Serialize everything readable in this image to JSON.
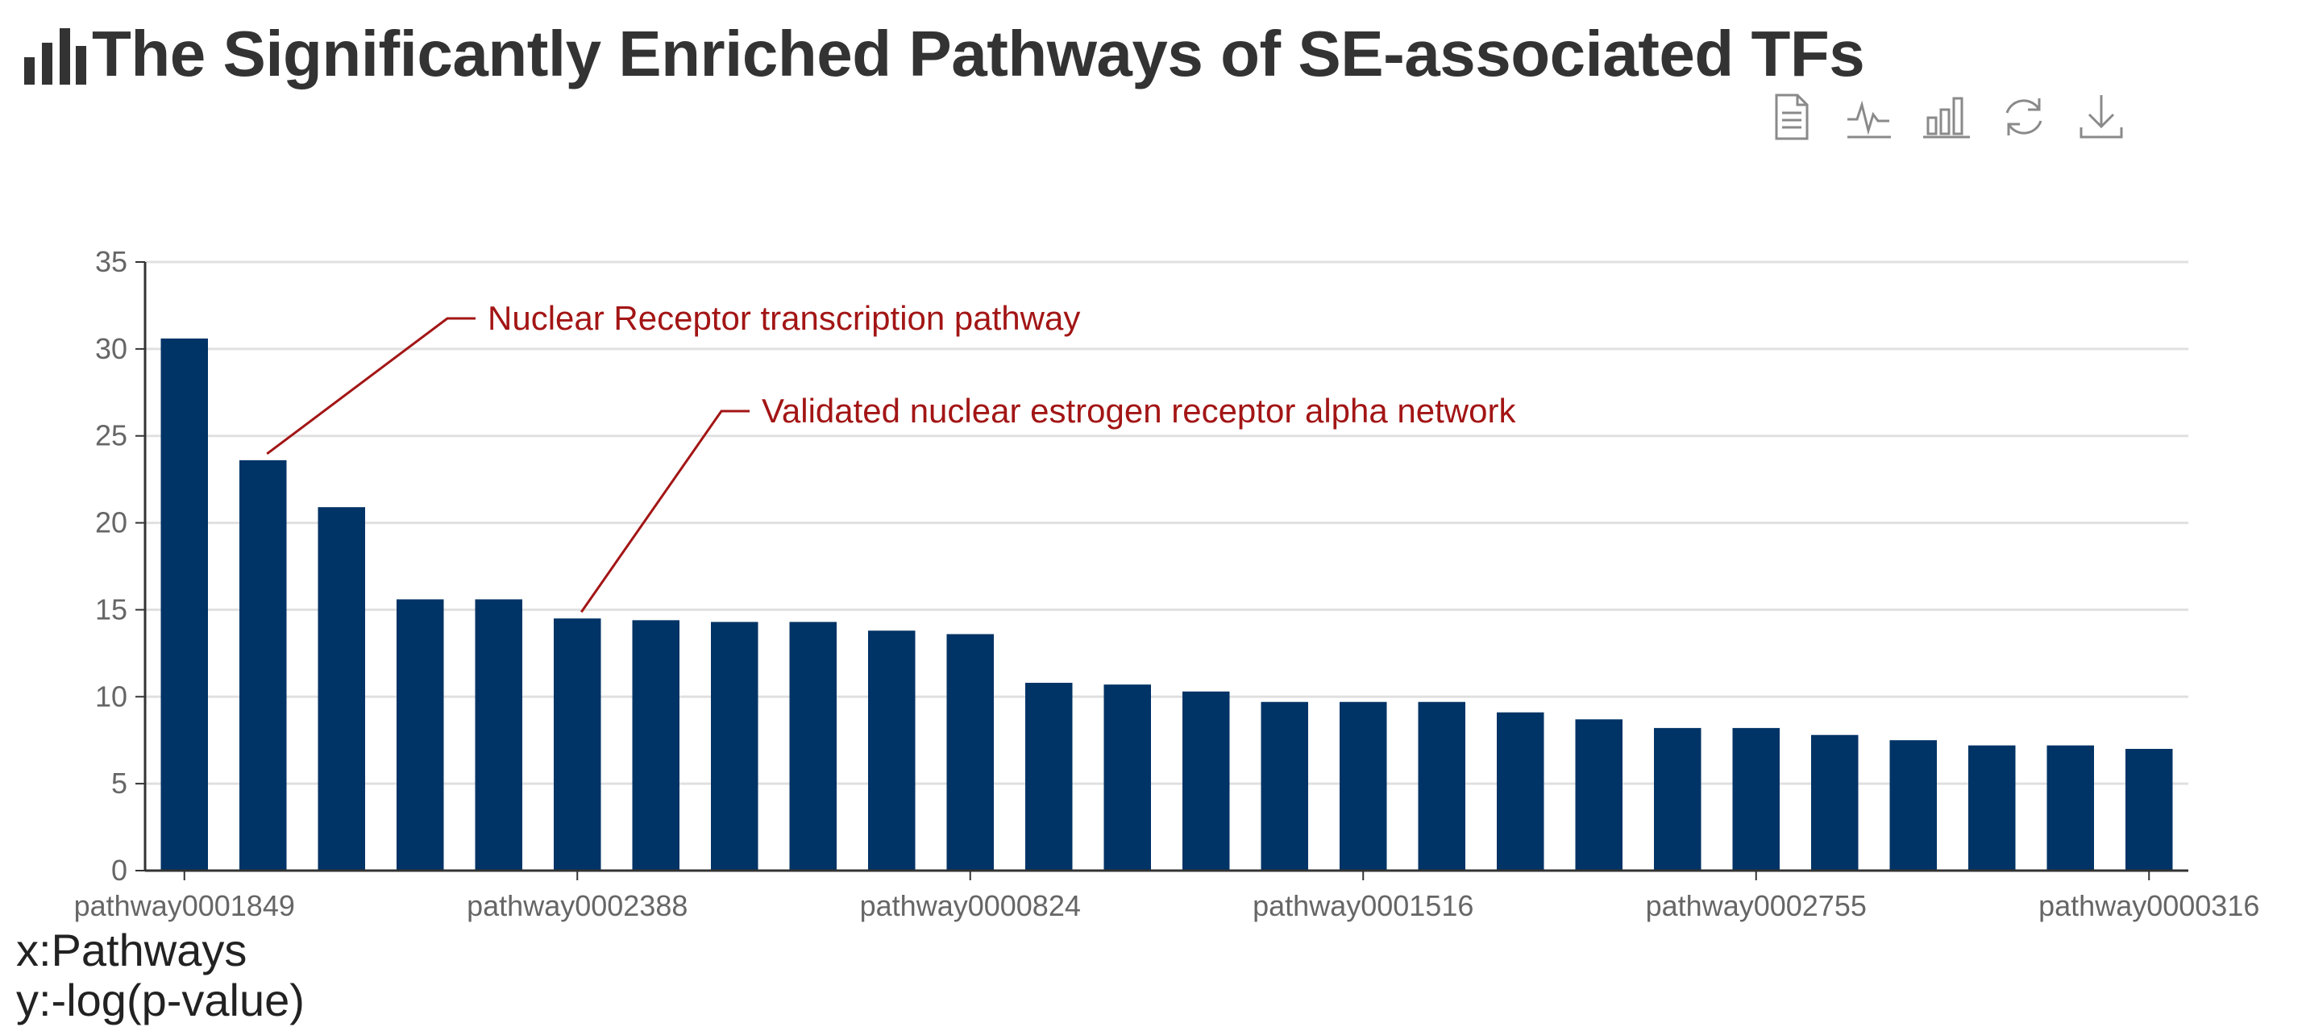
{
  "header": {
    "title": "The Significantly Enriched Pathways of SE-associated TFs",
    "title_icon": "bar-chart-icon"
  },
  "toolbox": [
    {
      "name": "data-view",
      "icon": "document-icon"
    },
    {
      "name": "line-chart",
      "icon": "line-chart-icon"
    },
    {
      "name": "bar-chart",
      "icon": "bar-chart-icon"
    },
    {
      "name": "restore",
      "icon": "refresh-icon"
    },
    {
      "name": "save-image",
      "icon": "download-icon"
    }
  ],
  "axis_notes": {
    "x": "x:Pathways",
    "y": "y:-log(p-value)"
  },
  "chart_data": {
    "type": "bar",
    "title": "The Significantly Enriched Pathways of SE-associated TFs",
    "xlabel": "x:Pathways",
    "ylabel": "y:-log(p-value)",
    "ylim": [
      0,
      35
    ],
    "yticks": [
      0,
      5,
      10,
      15,
      20,
      25,
      30,
      35
    ],
    "grid": true,
    "bar_color": "#003366",
    "categories": [
      "pathway0001849",
      "",
      "",
      "",
      "",
      "pathway0002388",
      "",
      "",
      "",
      "",
      "pathway0000824",
      "",
      "",
      "",
      "",
      "pathway0001516",
      "",
      "",
      "",
      "",
      "pathway0002755",
      "",
      "",
      "",
      "",
      "pathway0000316"
    ],
    "values": [
      30.6,
      23.6,
      20.9,
      15.6,
      15.6,
      14.5,
      14.4,
      14.3,
      14.3,
      13.8,
      13.6,
      10.8,
      10.7,
      10.3,
      9.7,
      9.7,
      9.7,
      9.1,
      8.7,
      8.2,
      8.2,
      7.8,
      7.5,
      7.2,
      7.2,
      7.0
    ],
    "annotations": [
      {
        "text": "Nuclear Receptor transcription pathway",
        "bar_index": 1
      },
      {
        "text": "Validated nuclear estrogen receptor alpha network",
        "bar_index": 5
      }
    ],
    "annotation_color": "#a31515"
  }
}
